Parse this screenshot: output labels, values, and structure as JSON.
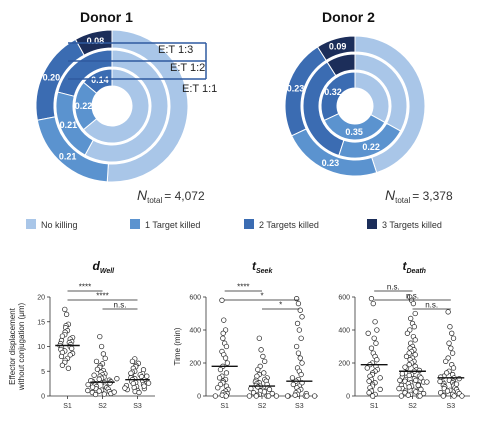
{
  "colors": {
    "no_killing": "#a9c6e8",
    "one": "#5b93cf",
    "two": "#3b6cb2",
    "three": "#1c2e5a"
  },
  "donuts": [
    {
      "title": "Donor 1",
      "n_label": "N",
      "n_sub": "total",
      "n_value": "= 4,072",
      "rings": [
        {
          "label": "E:T 1:1",
          "fractions": [
            0.64,
            0.22,
            0.14,
            0.0
          ],
          "value_labels": {
            "one": "0.22",
            "two": "0.14"
          }
        },
        {
          "label": "E:T 1:2",
          "fractions": [
            0.58,
            0.21,
            0.21,
            0.0
          ],
          "value_labels": {
            "one": "0.21",
            "two": ""
          }
        },
        {
          "label": "E:T 1:3",
          "fractions": [
            0.51,
            0.21,
            0.2,
            0.08
          ],
          "value_labels": {
            "one": "0.21",
            "two": "0.20",
            "three": "0.08"
          }
        }
      ]
    },
    {
      "title": "Donor 2",
      "n_label": "N",
      "n_sub": "total",
      "n_value": "= 3,378",
      "rings": [
        {
          "label": "",
          "fractions": [
            0.33,
            0.35,
            0.32,
            0.0
          ],
          "value_labels": {
            "one": "0.35",
            "two": "0.32"
          }
        },
        {
          "label": "",
          "fractions": [
            0.33,
            0.22,
            0.36,
            0.09
          ],
          "value_labels": {
            "one": "0.22",
            "two": ""
          }
        },
        {
          "label": "",
          "fractions": [
            0.45,
            0.23,
            0.23,
            0.09
          ],
          "value_labels": {
            "one": "0.23",
            "two": "0.23",
            "three": "0.09"
          }
        }
      ]
    }
  ],
  "legend": [
    {
      "label": "No killing",
      "color_key": "no_killing"
    },
    {
      "label": "1 Target killed",
      "color_key": "one"
    },
    {
      "label": "2 Targets killed",
      "color_key": "two"
    },
    {
      "label": "3 Targets killed",
      "color_key": "three"
    }
  ],
  "chart_data": [
    {
      "type": "scatter",
      "title_main": "d",
      "title_sub": "Well",
      "ylabel_lines": [
        "Effector displacement",
        "without conjugation (μm)"
      ],
      "categories": [
        "S1",
        "S2",
        "S3"
      ],
      "ylim": [
        0,
        20
      ],
      "yticks": [
        0,
        5,
        10,
        15,
        20
      ],
      "medians": [
        10.2,
        2.8,
        3.3
      ],
      "series": [
        {
          "name": "S1",
          "values": [
            17.5,
            16.5,
            14.5,
            14.2,
            13.8,
            13.2,
            12.9,
            12.4,
            12.1,
            11.8,
            11.5,
            11.2,
            11.0,
            10.8,
            10.6,
            10.4,
            10.2,
            10.0,
            9.8,
            9.6,
            9.4,
            9.1,
            8.8,
            8.6,
            8.3,
            8.0,
            7.6,
            7.2,
            6.8,
            6.2,
            5.6
          ]
        },
        {
          "name": "S2",
          "values": [
            12.0,
            10.0,
            8.5,
            7.6,
            7.0,
            6.5,
            6.1,
            5.8,
            5.4,
            5.1,
            4.8,
            4.5,
            4.3,
            4.0,
            3.8,
            3.6,
            3.4,
            3.2,
            3.0,
            2.9,
            2.7,
            2.5,
            2.4,
            2.2,
            2.0,
            1.9,
            1.7,
            1.5,
            1.4,
            1.2,
            1.0,
            0.9,
            0.7,
            0.5,
            0.4,
            0.3,
            2.6,
            3.1,
            1.8,
            2.3,
            4.2,
            3.5,
            1.1,
            0.8
          ]
        },
        {
          "name": "S3",
          "values": [
            7.5,
            7.0,
            6.6,
            6.2,
            5.9,
            5.6,
            5.3,
            5.0,
            4.8,
            4.5,
            4.3,
            4.1,
            3.9,
            3.7,
            3.5,
            3.3,
            3.1,
            2.9,
            2.7,
            2.5,
            2.3,
            2.1,
            1.9,
            1.7,
            1.5,
            1.3,
            1.1,
            0.9,
            0.7,
            3.4,
            4.0,
            2.6,
            2.0,
            1.6,
            4.6
          ]
        }
      ],
      "brackets": [
        {
          "from": 0,
          "to": 1,
          "level": 0,
          "label": "****"
        },
        {
          "from": 0,
          "to": 2,
          "level": 1,
          "label": "****"
        },
        {
          "from": 1,
          "to": 2,
          "level": 2,
          "label": "n.s."
        }
      ]
    },
    {
      "type": "scatter",
      "title_main": "t",
      "title_sub": "Seek",
      "ylabel_lines": [
        "Time (min)"
      ],
      "categories": [
        "S1",
        "S2",
        "S3"
      ],
      "ylim": [
        0,
        600
      ],
      "yticks": [
        0,
        200,
        400,
        600
      ],
      "medians": [
        180,
        60,
        90
      ],
      "series": [
        {
          "name": "S1",
          "values": [
            580,
            460,
            400,
            380,
            350,
            320,
            300,
            270,
            250,
            230,
            200,
            180,
            160,
            140,
            120,
            110,
            100,
            90,
            80,
            70,
            60,
            50,
            40,
            30,
            20,
            15,
            10,
            5,
            0,
            0
          ]
        },
        {
          "name": "S2",
          "values": [
            350,
            280,
            240,
            210,
            180,
            160,
            140,
            130,
            120,
            110,
            100,
            95,
            90,
            85,
            80,
            75,
            70,
            65,
            60,
            55,
            50,
            45,
            40,
            35,
            30,
            25,
            20,
            15,
            10,
            5,
            0,
            0,
            0,
            0,
            0
          ]
        },
        {
          "name": "S3",
          "values": [
            590,
            560,
            520,
            480,
            440,
            400,
            350,
            300,
            260,
            230,
            200,
            170,
            150,
            130,
            110,
            100,
            90,
            80,
            70,
            60,
            50,
            40,
            30,
            20,
            15,
            10,
            5,
            0,
            0,
            0,
            0,
            0
          ]
        }
      ],
      "brackets": [
        {
          "from": 0,
          "to": 1,
          "level": 0,
          "label": "****"
        },
        {
          "from": 0,
          "to": 2,
          "level": 1,
          "label": "*"
        },
        {
          "from": 1,
          "to": 2,
          "level": 2,
          "label": "*"
        }
      ]
    },
    {
      "type": "scatter",
      "title_main": "t",
      "title_sub": "Death",
      "ylabel_lines": [],
      "categories": [
        "S1",
        "S2",
        "S3"
      ],
      "ylim": [
        0,
        600
      ],
      "yticks": [
        0,
        200,
        400,
        600
      ],
      "medians": [
        190,
        150,
        110
      ],
      "series": [
        {
          "name": "S1",
          "values": [
            590,
            560,
            450,
            400,
            380,
            350,
            320,
            290,
            260,
            240,
            220,
            200,
            190,
            180,
            170,
            160,
            150,
            140,
            130,
            120,
            110,
            100,
            90,
            80,
            70,
            60,
            50,
            40,
            30,
            20,
            10,
            0
          ]
        },
        {
          "name": "S2",
          "values": [
            600,
            580,
            560,
            500,
            470,
            440,
            420,
            400,
            380,
            360,
            340,
            320,
            300,
            290,
            280,
            270,
            260,
            250,
            240,
            230,
            220,
            210,
            200,
            190,
            180,
            170,
            160,
            150,
            140,
            130,
            125,
            120,
            115,
            110,
            105,
            100,
            95,
            90,
            85,
            80,
            75,
            70,
            65,
            60,
            55,
            50,
            45,
            40,
            35,
            30,
            25,
            20,
            15,
            10,
            5,
            0,
            0,
            0,
            175,
            155,
            135,
            95,
            85,
            65,
            45
          ]
        },
        {
          "name": "S3",
          "values": [
            510,
            420,
            380,
            350,
            320,
            290,
            260,
            230,
            210,
            190,
            170,
            150,
            140,
            130,
            120,
            110,
            100,
            95,
            90,
            85,
            80,
            75,
            70,
            65,
            60,
            55,
            50,
            45,
            40,
            35,
            30,
            25,
            20,
            15,
            10,
            5,
            0,
            0,
            0,
            115,
            105,
            88,
            72
          ]
        }
      ],
      "brackets": [
        {
          "from": 0,
          "to": 1,
          "level": 0,
          "label": "n.s."
        },
        {
          "from": 0,
          "to": 2,
          "level": 1,
          "label": "n.s."
        },
        {
          "from": 1,
          "to": 2,
          "level": 2,
          "label": "n.s."
        }
      ]
    }
  ]
}
